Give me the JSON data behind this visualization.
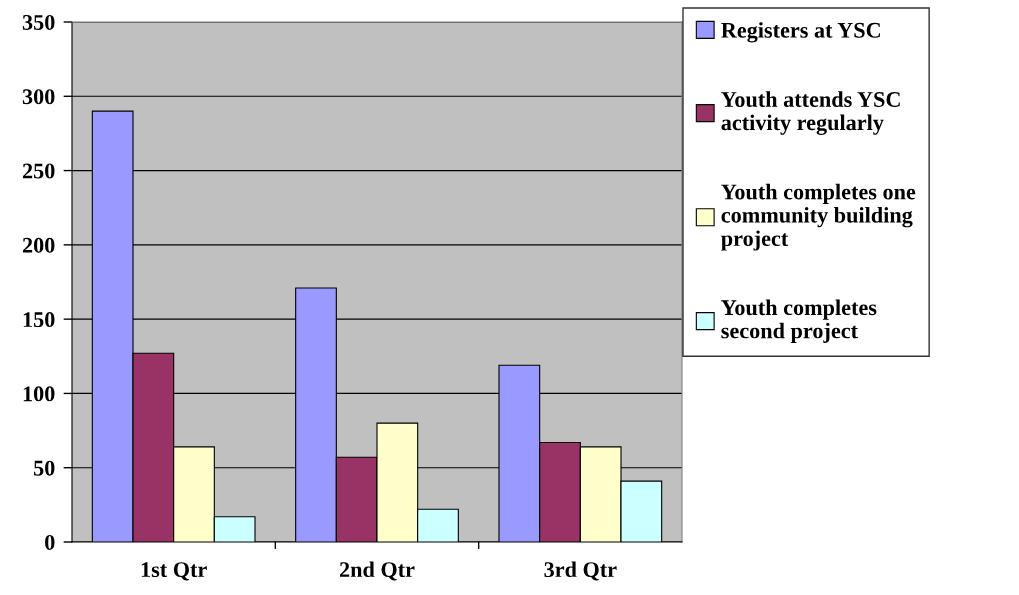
{
  "chart_data": {
    "type": "bar",
    "categories": [
      "1st Qtr",
      "2nd Qtr",
      "3rd Qtr"
    ],
    "series": [
      {
        "name": "Registers at YSC",
        "color": "#9999ff",
        "values": [
          290,
          171,
          119
        ]
      },
      {
        "name": "Youth attends YSC\nactivity regularly",
        "color": "#993366",
        "values": [
          127,
          57,
          67
        ]
      },
      {
        "name": "Youth completes one\ncommunity building\nproject",
        "color": "#ffffcc",
        "values": [
          64,
          80,
          64
        ]
      },
      {
        "name": "Youth completes\nsecond project",
        "color": "#ccffff",
        "values": [
          17,
          22,
          41
        ]
      }
    ],
    "ylim": [
      0,
      350
    ],
    "yticks": [
      0,
      50,
      100,
      150,
      200,
      250,
      300,
      350
    ],
    "grid": "y",
    "legend": "right"
  }
}
